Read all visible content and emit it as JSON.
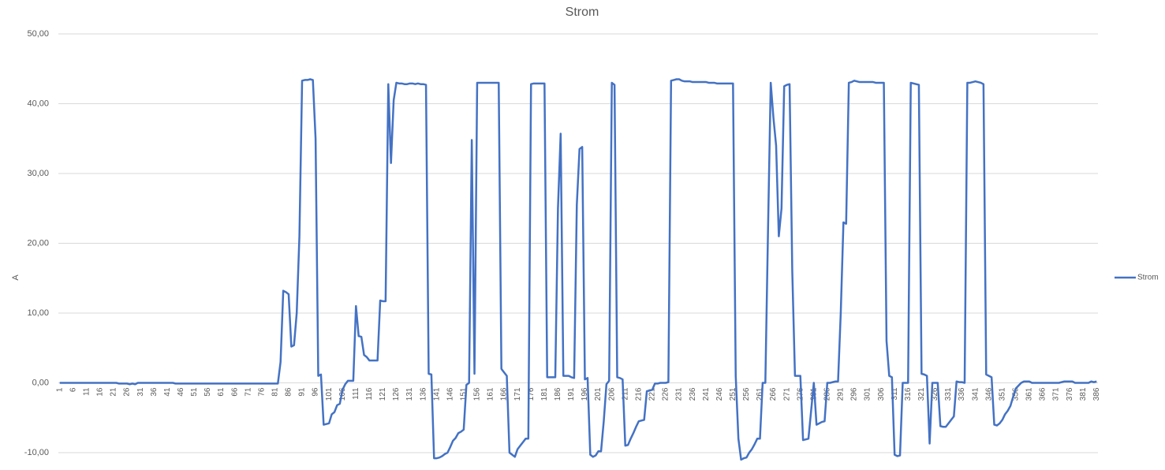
{
  "chart_data": {
    "type": "line",
    "title": "Strom",
    "y_label": "A",
    "categories": [
      "1",
      null,
      null,
      null,
      null,
      "6",
      null,
      null,
      null,
      null,
      "11",
      null,
      null,
      null,
      null,
      "16",
      null,
      null,
      null,
      null,
      "21",
      null,
      null,
      null,
      null,
      "26",
      null,
      null,
      null,
      null,
      "31",
      null,
      null,
      null,
      null,
      "36",
      null,
      null,
      null,
      null,
      "41",
      null,
      null,
      null,
      null,
      "46",
      null,
      null,
      null,
      null,
      "51",
      null,
      null,
      null,
      null,
      "56",
      null,
      null,
      null,
      null,
      "61",
      null,
      null,
      null,
      null,
      "66",
      null,
      null,
      null,
      null,
      "71",
      null,
      null,
      null,
      null,
      "76",
      null,
      null,
      null,
      null,
      "81",
      null,
      null,
      null,
      null,
      "86",
      null,
      null,
      null,
      null,
      "91",
      null,
      null,
      null,
      null,
      "96",
      null,
      null,
      null,
      null,
      "101",
      null,
      null,
      null,
      null,
      "106",
      null,
      null,
      null,
      null,
      "111",
      null,
      null,
      null,
      null,
      "116",
      null,
      null,
      null,
      null,
      "121",
      null,
      null,
      null,
      null,
      "126",
      null,
      null,
      null,
      null,
      "131",
      null,
      null,
      null,
      null,
      "136",
      null,
      null,
      null,
      null,
      "141",
      null,
      null,
      null,
      null,
      "146",
      null,
      null,
      null,
      null,
      "151",
      null,
      null,
      null,
      null,
      "156",
      null,
      null,
      null,
      null,
      "161",
      null,
      null,
      null,
      null,
      "166",
      null,
      null,
      null,
      null,
      "171",
      null,
      null,
      null,
      null,
      "176",
      null,
      null,
      null,
      null,
      "181",
      null,
      null,
      null,
      null,
      "186",
      null,
      null,
      null,
      null,
      "191",
      null,
      null,
      null,
      null,
      "196",
      null,
      null,
      null,
      null,
      "201",
      null,
      null,
      null,
      null,
      "206",
      null,
      null,
      null,
      null,
      "211",
      null,
      null,
      null,
      null,
      "216",
      null,
      null,
      null,
      null,
      "221",
      null,
      null,
      null,
      null,
      "226",
      null,
      null,
      null,
      null,
      "231",
      null,
      null,
      null,
      null,
      "236",
      null,
      null,
      null,
      null,
      "241",
      null,
      null,
      null,
      null,
      "246",
      null,
      null,
      null,
      null,
      "251",
      null,
      null,
      null,
      null,
      "256",
      null,
      null,
      null,
      null,
      "261",
      null,
      null,
      null,
      null,
      "266",
      null,
      null,
      null,
      null,
      "271",
      null,
      null,
      null,
      null,
      "276",
      null,
      null,
      null,
      null,
      "281",
      null,
      null,
      null,
      null,
      "286",
      null,
      null,
      null,
      null,
      "291",
      null,
      null,
      null,
      null,
      "296",
      null,
      null,
      null,
      null,
      "301",
      null,
      null,
      null,
      null,
      "306",
      null,
      null,
      null,
      null,
      "311",
      null,
      null,
      null,
      null,
      "316",
      null,
      null,
      null,
      null,
      "321",
      null,
      null,
      null,
      null,
      "326",
      null,
      null,
      null,
      null,
      "331",
      null,
      null,
      null,
      null,
      "336",
      null,
      null,
      null,
      null,
      "341",
      null,
      null,
      null,
      null,
      "346",
      null,
      null,
      null,
      null,
      "351",
      null,
      null,
      null,
      null,
      "356",
      null,
      null,
      null,
      null,
      "361",
      null,
      null,
      null,
      null,
      "366",
      null,
      null,
      null,
      null,
      "371",
      null,
      null,
      null,
      null,
      "376",
      null,
      null,
      null,
      null,
      "381",
      null,
      null,
      null,
      null,
      "386"
    ],
    "series": [
      {
        "name": "Strom",
        "color": "#4472c4",
        "values": [
          0,
          0,
          0,
          0,
          0,
          0,
          0,
          0,
          0,
          0,
          0,
          0,
          0,
          0,
          0,
          0,
          0,
          0,
          0,
          0,
          0,
          0,
          -0.1,
          -0.1,
          -0.1,
          -0.1,
          -0.2,
          -0.1,
          -0.2,
          0,
          0,
          0,
          0,
          0,
          0,
          0,
          0,
          0,
          0,
          0,
          0,
          0,
          0,
          -0.1,
          -0.1,
          -0.1,
          -0.1,
          -0.1,
          -0.1,
          -0.1,
          -0.1,
          -0.1,
          -0.1,
          -0.1,
          -0.1,
          -0.1,
          -0.1,
          -0.1,
          -0.1,
          -0.1,
          -0.1,
          -0.1,
          -0.1,
          -0.1,
          -0.1,
          -0.1,
          -0.1,
          -0.1,
          -0.1,
          -0.1,
          -0.1,
          -0.1,
          -0.1,
          -0.1,
          -0.1,
          -0.1,
          -0.1,
          -0.1,
          -0.1,
          -0.1,
          -0.1,
          -0.1,
          3,
          13.2,
          13,
          12.7,
          5.2,
          5.4,
          10,
          21,
          43.3,
          43.4,
          43.4,
          43.5,
          43.4,
          35,
          1,
          1.2,
          -6,
          -5.9,
          -5.8,
          -4.5,
          -4.2,
          -3.2,
          -3,
          -1,
          -0.2,
          0.3,
          0.3,
          0.3,
          11,
          6.7,
          6.6,
          4,
          3.7,
          3.2,
          3.2,
          3.2,
          3.2,
          11.8,
          11.7,
          11.7,
          42.8,
          31.5,
          40.5,
          43,
          42.9,
          42.9,
          42.8,
          42.8,
          42.9,
          42.9,
          42.8,
          42.9,
          42.8,
          42.8,
          42.7,
          1.3,
          1.2,
          -10.8,
          -10.8,
          -10.7,
          -10.5,
          -10.2,
          -10,
          -9.2,
          -8.3,
          -7.9,
          -7.2,
          -7,
          -6.7,
          -0.3,
          0,
          34.8,
          1.3,
          43,
          43,
          43,
          43,
          43,
          43,
          43,
          43,
          43,
          2,
          1.5,
          1,
          -10,
          -10.3,
          -10.6,
          -9.5,
          -9,
          -8.5,
          -8,
          -8,
          42.8,
          42.9,
          42.9,
          42.9,
          42.9,
          42.9,
          0.8,
          0.8,
          0.8,
          0.8,
          25,
          35.7,
          1,
          1,
          1,
          0.8,
          0.7,
          25.5,
          33.5,
          33.8,
          0.5,
          0.7,
          -10.3,
          -10.6,
          -10.4,
          -9.8,
          -9.8,
          -5.5,
          -0.2,
          0.3,
          43,
          42.7,
          0.8,
          0.7,
          0.5,
          -9,
          -8.9,
          -8,
          -7.2,
          -6.3,
          -5.5,
          -5.4,
          -5.3,
          -1.2,
          -1.1,
          -1,
          -0.1,
          -0.1,
          0,
          0,
          0,
          0.1,
          43.3,
          43.4,
          43.5,
          43.5,
          43.3,
          43.2,
          43.2,
          43.2,
          43.1,
          43.1,
          43.1,
          43.1,
          43.1,
          43.1,
          43,
          43,
          43,
          42.9,
          42.9,
          42.9,
          42.9,
          42.9,
          42.9,
          42.9,
          1,
          -8,
          -11,
          -10.8,
          -10.7,
          -10,
          -9.5,
          -8.8,
          -8,
          -8,
          0,
          0,
          22,
          43,
          38,
          34,
          21,
          25,
          42.5,
          42.7,
          42.8,
          16,
          1,
          1,
          1,
          -8.2,
          -8.1,
          -8,
          -4,
          0,
          -6,
          -5.8,
          -5.6,
          -5.5,
          0,
          0,
          0.1,
          0.2,
          0.2,
          10,
          23,
          22.8,
          43,
          43.1,
          43.3,
          43.2,
          43.1,
          43.1,
          43.1,
          43.1,
          43.1,
          43.1,
          43,
          43,
          43,
          43,
          6,
          1,
          0.8,
          -10.3,
          -10.5,
          -10.4,
          0,
          0,
          0,
          43,
          42.9,
          42.8,
          42.7,
          1.3,
          1.2,
          1,
          -8.7,
          0,
          0,
          0,
          -6.2,
          -6.3,
          -6.3,
          -5.8,
          -5.3,
          -4.8,
          0.2,
          0.1,
          0.1,
          0,
          43,
          43,
          43.1,
          43.2,
          43.1,
          43,
          42.8,
          1.2,
          1,
          0.8,
          -6,
          -6.1,
          -5.8,
          -5.3,
          -4.5,
          -4,
          -3.3,
          -2,
          -0.8,
          -0.4,
          0,
          0.2,
          0.2,
          0.2,
          0,
          0,
          0,
          0,
          0,
          0,
          0,
          0,
          0,
          0,
          0,
          0.1,
          0.2,
          0.2,
          0.2,
          0.2,
          0,
          0,
          0,
          0,
          0,
          0,
          0.2,
          0.1,
          0.2
        ]
      }
    ],
    "ylim": [
      -10,
      50
    ],
    "yticks": [
      {
        "value": -10,
        "label": "-10,00"
      },
      {
        "value": 0,
        "label": "0,00"
      },
      {
        "value": 10,
        "label": "10,00"
      },
      {
        "value": 20,
        "label": "20,00"
      },
      {
        "value": 30,
        "label": "30,00"
      },
      {
        "value": 40,
        "label": "40,00"
      },
      {
        "value": 50,
        "label": "50,00"
      }
    ],
    "grid": true,
    "legend": "right"
  }
}
